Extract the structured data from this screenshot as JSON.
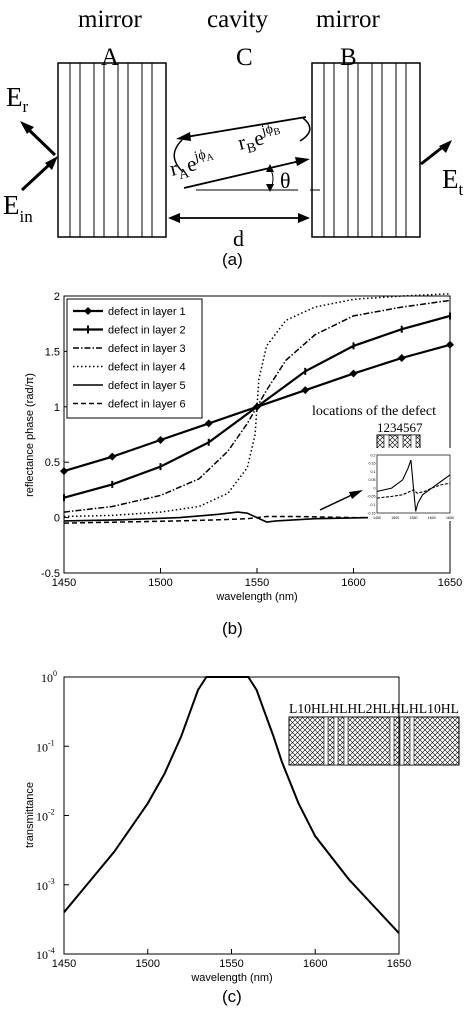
{
  "panel_a": {
    "label": "(a)",
    "mirror_a_title": "mirror",
    "mirror_a_letter": "A",
    "cavity_title": "cavity",
    "cavity_letter": "C",
    "mirror_b_title": "mirror",
    "mirror_b_letter": "B",
    "e_r": "E",
    "e_r_sub": "r",
    "e_in": "E",
    "e_in_sub": "in",
    "e_t": "E",
    "e_t_sub": "t",
    "r_a": "r",
    "r_a_sub": "A",
    "r_a_exp": "e",
    "r_a_phase": "jϕ",
    "r_a_phase_sub": "A",
    "r_b": "r",
    "r_b_sub": "B",
    "r_b_exp": "e",
    "r_b_phase": "jϕ",
    "r_b_phase_sub": "B",
    "theta": "θ",
    "distance": "d"
  },
  "panel_b": {
    "label": "(b)",
    "inset_caption": "locations of the defect",
    "inset_numbers": "1234567",
    "inset_layer_label": "LH"
  },
  "panel_c": {
    "label": "(c)",
    "structure_label": "L10HLHLHL2HLHLHL10HL"
  },
  "chart_data": [
    {
      "type": "line",
      "xlabel": "wavelength (nm)",
      "ylabel": "reflectance phase (rad/π)",
      "xlim": [
        1450,
        1650
      ],
      "ylim": [
        -0.5,
        2
      ],
      "x_ticks": [
        "1450",
        "1500",
        "1550",
        "1600",
        "1650"
      ],
      "y_ticks": [
        "-0.5",
        "0",
        "0.5",
        "1",
        "1.5",
        "2"
      ],
      "legend_position": "top-left",
      "grid": false,
      "series": [
        {
          "name": "defect in layer 1",
          "marker": "diamond",
          "x": [
            1450,
            1475,
            1500,
            1525,
            1550,
            1575,
            1600,
            1625,
            1650
          ],
          "y": [
            0.42,
            0.55,
            0.7,
            0.85,
            1.0,
            1.15,
            1.3,
            1.44,
            1.56
          ]
        },
        {
          "name": "defect in layer 2",
          "marker": "bar",
          "x": [
            1450,
            1475,
            1500,
            1525,
            1550,
            1575,
            1600,
            1625,
            1650
          ],
          "y": [
            0.18,
            0.3,
            0.46,
            0.68,
            1.0,
            1.32,
            1.55,
            1.7,
            1.82
          ]
        },
        {
          "name": "defect in layer 3",
          "marker": "none",
          "x": [
            1450,
            1475,
            1500,
            1520,
            1535,
            1545,
            1550,
            1555,
            1565,
            1580,
            1600,
            1625,
            1650
          ],
          "y": [
            0.05,
            0.1,
            0.2,
            0.35,
            0.6,
            0.85,
            1.0,
            1.15,
            1.42,
            1.65,
            1.82,
            1.9,
            1.96
          ]
        },
        {
          "name": "defect in layer 4",
          "marker": "none",
          "x": [
            1450,
            1475,
            1500,
            1520,
            1535,
            1545,
            1549,
            1550,
            1551,
            1555,
            1565,
            1580,
            1600,
            1625,
            1650
          ],
          "y": [
            0.01,
            0.02,
            0.05,
            0.1,
            0.22,
            0.45,
            0.75,
            1.0,
            1.25,
            1.55,
            1.78,
            1.9,
            1.97,
            2.0,
            2.02
          ]
        },
        {
          "name": "defect in layer 5",
          "marker": "none",
          "x": [
            1450,
            1480,
            1510,
            1530,
            1540,
            1545,
            1550,
            1555,
            1560,
            1580,
            1610
          ],
          "y": [
            -0.03,
            -0.02,
            0.0,
            0.03,
            0.05,
            0.04,
            0.0,
            -0.04,
            -0.03,
            -0.01,
            0.0
          ]
        },
        {
          "name": "defect in layer 6",
          "marker": "none",
          "x": [
            1450,
            1480,
            1510,
            1530,
            1545,
            1550,
            1555,
            1570,
            1600,
            1650
          ],
          "y": [
            -0.05,
            -0.04,
            -0.03,
            -0.02,
            -0.01,
            0.0,
            0.01,
            0.01,
            0.0,
            0.0
          ]
        }
      ],
      "inset": {
        "type": "line",
        "xlim": [
          1450,
          1650
        ],
        "ylim": [
          -0.15,
          0.2
        ],
        "x_ticks": [
          "1450",
          "1500",
          "1550",
          "1600",
          "1650"
        ],
        "y_ticks": [
          "0.2",
          "0.15",
          "0.1",
          "0.05",
          "0",
          "-0.05",
          "-0.1",
          "-0.15"
        ],
        "series": [
          {
            "x": [
              1450,
              1490,
              1520,
              1535,
              1543,
              1550,
              1556,
              1562,
              1575,
              1600,
              1625,
              1650
            ],
            "y": [
              -0.02,
              0.0,
              0.05,
              0.12,
              0.17,
              0.0,
              -0.14,
              -0.09,
              -0.04,
              0.0,
              0.04,
              0.08
            ]
          },
          {
            "x": [
              1450,
              1490,
              1520,
              1540,
              1550,
              1560,
              1580,
              1600,
              1625,
              1650
            ],
            "y": [
              -0.06,
              -0.05,
              -0.04,
              -0.02,
              -0.01,
              -0.03,
              -0.02,
              0.0,
              0.02,
              0.03
            ]
          }
        ]
      }
    },
    {
      "type": "line",
      "xlabel": "wavelength (nm)",
      "ylabel": "transmittance",
      "scale_y": "log",
      "xlim": [
        1450,
        1650
      ],
      "ylim": [
        0.0001,
        1
      ],
      "x_ticks": [
        "1450",
        "1500",
        "1550",
        "1600",
        "1650"
      ],
      "y_tick_base": "10",
      "y_tick_exponents": [
        "0",
        "-1",
        "-2",
        "-3",
        "-4"
      ],
      "grid": false,
      "series": [
        {
          "x": [
            1450,
            1480,
            1500,
            1510,
            1520,
            1525,
            1530,
            1535,
            1540,
            1550,
            1560,
            1565,
            1570,
            1575,
            1580,
            1590,
            1600,
            1620,
            1650
          ],
          "y": [
            0.0004,
            0.003,
            0.015,
            0.04,
            0.14,
            0.3,
            0.65,
            1.0,
            1.0,
            1.0,
            1.0,
            0.65,
            0.3,
            0.14,
            0.06,
            0.015,
            0.005,
            0.0012,
            0.0002
          ]
        }
      ]
    }
  ]
}
